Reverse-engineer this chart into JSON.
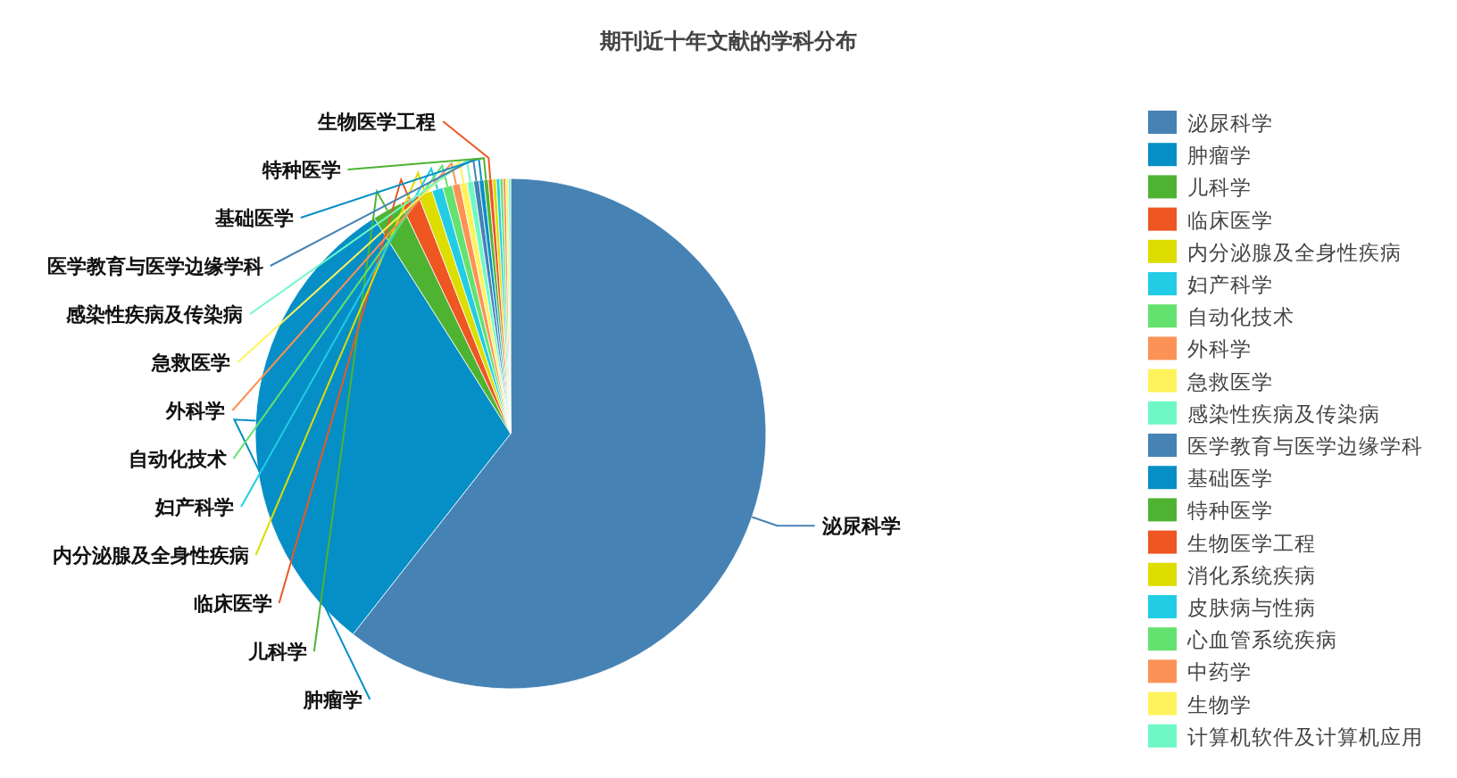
{
  "chart_data": {
    "type": "pie",
    "title": "期刊近十年文献的学科分布",
    "categories": [
      "泌尿科学",
      "肿瘤学",
      "儿科学",
      "临床医学",
      "内分泌腺及全身性疾病",
      "妇产科学",
      "自动化技术",
      "外科学",
      "急救医学",
      "感染性疾病及传染病",
      "医学教育与医学边缘学科",
      "基础医学",
      "特种医学",
      "生物医学工程",
      "消化系统疾病",
      "皮肤病与性病",
      "心血管系统疾病",
      "中药学",
      "生物学",
      "计算机软件及计算机应用"
    ],
    "values": [
      60.6,
      30.42,
      1.9,
      1.2,
      0.9,
      0.7,
      0.6,
      0.5,
      0.45,
      0.4,
      0.35,
      0.3,
      0.28,
      0.26,
      0.24,
      0.22,
      0.2,
      0.18,
      0.16,
      0.14
    ],
    "colors": [
      "#4682b4",
      "#068fc7",
      "#4fb332",
      "#ee5622",
      "#dddd00",
      "#22cce4",
      "#63e26f",
      "#fc9255",
      "#fff35d",
      "#6ff8c6",
      "#4682b4",
      "#068fc7",
      "#4fb332",
      "#ee5622",
      "#dddd00",
      "#22cce4",
      "#63e26f",
      "#fc9255",
      "#fff35d",
      "#6ff8c6"
    ],
    "legend": "right"
  }
}
